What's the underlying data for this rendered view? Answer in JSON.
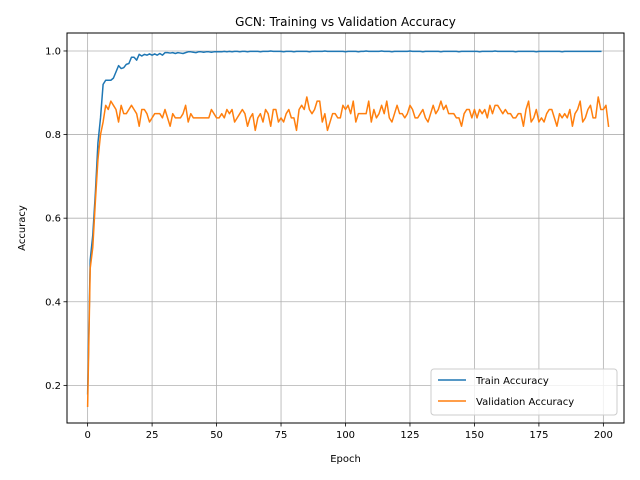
{
  "chart_data": {
    "type": "line",
    "title": "GCN: Training vs Validation Accuracy",
    "xlabel": "Epoch",
    "ylabel": "Accuracy",
    "xlim": [
      -8,
      208
    ],
    "ylim": [
      0.11,
      1.043
    ],
    "xticks": [
      0,
      25,
      50,
      75,
      100,
      125,
      150,
      175,
      200
    ],
    "yticks": [
      0.2,
      0.4,
      0.6,
      0.8,
      1.0
    ],
    "ytick_labels": [
      "0.2",
      "0.4",
      "0.6",
      "0.8",
      "1.0"
    ],
    "grid": true,
    "legend_position": "lower right",
    "series": [
      {
        "name": "Train Accuracy",
        "color": "#1f77b4",
        "values": [
          0.18,
          0.5,
          0.56,
          0.66,
          0.78,
          0.84,
          0.92,
          0.93,
          0.93,
          0.93,
          0.935,
          0.95,
          0.965,
          0.958,
          0.96,
          0.968,
          0.97,
          0.985,
          0.985,
          0.978,
          0.992,
          0.988,
          0.992,
          0.99,
          0.993,
          0.99,
          0.993,
          0.99,
          0.994,
          0.99,
          0.996,
          0.996,
          0.995,
          0.996,
          0.994,
          0.996,
          0.995,
          0.994,
          0.996,
          0.998,
          0.998,
          0.997,
          0.996,
          0.998,
          0.998,
          0.997,
          0.998,
          0.998,
          0.997,
          0.998,
          0.998,
          0.998,
          0.998,
          0.999,
          0.998,
          0.999,
          0.998,
          0.999,
          0.999,
          0.998,
          0.999,
          0.999,
          0.998,
          0.999,
          0.999,
          0.999,
          0.999,
          0.998,
          0.999,
          0.999,
          0.999,
          1.0,
          0.999,
          0.999,
          0.999,
          0.999,
          0.998,
          0.999,
          0.999,
          0.999,
          0.998,
          0.999,
          0.999,
          0.999,
          0.999,
          0.999,
          0.998,
          0.999,
          0.999,
          0.999,
          0.999,
          0.999,
          1.0,
          0.999,
          0.999,
          0.999,
          0.999,
          0.999,
          0.999,
          0.999,
          0.998,
          0.999,
          0.999,
          0.999,
          0.999,
          0.998,
          0.999,
          0.999,
          1.0,
          0.999,
          0.999,
          0.999,
          0.999,
          0.999,
          1.0,
          0.999,
          0.999,
          0.999,
          0.998,
          0.999,
          0.999,
          0.999,
          0.999,
          0.999,
          0.999,
          1.0,
          0.999,
          0.999,
          0.999,
          0.999,
          0.998,
          0.999,
          0.999,
          0.999,
          0.999,
          0.999,
          0.999,
          0.998,
          0.999,
          0.999,
          0.999,
          0.999,
          0.999,
          0.999,
          0.998,
          0.999,
          0.999,
          0.999,
          0.999,
          0.999,
          0.999,
          0.999,
          0.998,
          0.999,
          0.999,
          0.999,
          0.999,
          0.999,
          1.0,
          0.999,
          0.999,
          0.999,
          0.999,
          0.999,
          0.999,
          0.999,
          0.998,
          0.999,
          0.999,
          0.999,
          0.999,
          0.999,
          0.999,
          0.999,
          0.998,
          0.999,
          0.999,
          0.999,
          0.999,
          0.999,
          0.999,
          0.999,
          0.999,
          0.999,
          0.998,
          0.999,
          0.999,
          0.999,
          0.999,
          0.999,
          0.999,
          0.999,
          0.999,
          0.999,
          0.999,
          0.999,
          0.999,
          0.999,
          0.999,
          0.999
        ]
      },
      {
        "name": "Validation Accuracy",
        "color": "#ff7f0e",
        "values": [
          0.15,
          0.48,
          0.53,
          0.64,
          0.74,
          0.8,
          0.83,
          0.87,
          0.86,
          0.88,
          0.87,
          0.86,
          0.83,
          0.87,
          0.85,
          0.85,
          0.86,
          0.87,
          0.86,
          0.85,
          0.82,
          0.86,
          0.86,
          0.85,
          0.83,
          0.84,
          0.85,
          0.85,
          0.85,
          0.84,
          0.86,
          0.84,
          0.82,
          0.85,
          0.84,
          0.84,
          0.84,
          0.85,
          0.87,
          0.83,
          0.85,
          0.84,
          0.84,
          0.84,
          0.84,
          0.84,
          0.84,
          0.84,
          0.86,
          0.85,
          0.84,
          0.84,
          0.85,
          0.84,
          0.86,
          0.85,
          0.86,
          0.83,
          0.84,
          0.85,
          0.86,
          0.85,
          0.82,
          0.84,
          0.85,
          0.81,
          0.84,
          0.85,
          0.83,
          0.86,
          0.85,
          0.82,
          0.86,
          0.86,
          0.83,
          0.84,
          0.83,
          0.85,
          0.86,
          0.84,
          0.84,
          0.81,
          0.86,
          0.87,
          0.86,
          0.89,
          0.86,
          0.85,
          0.86,
          0.88,
          0.88,
          0.83,
          0.85,
          0.81,
          0.83,
          0.85,
          0.85,
          0.84,
          0.84,
          0.87,
          0.86,
          0.87,
          0.85,
          0.88,
          0.83,
          0.85,
          0.85,
          0.85,
          0.85,
          0.88,
          0.83,
          0.86,
          0.84,
          0.85,
          0.87,
          0.85,
          0.88,
          0.84,
          0.83,
          0.85,
          0.87,
          0.85,
          0.85,
          0.84,
          0.85,
          0.87,
          0.86,
          0.84,
          0.84,
          0.85,
          0.86,
          0.84,
          0.83,
          0.85,
          0.87,
          0.85,
          0.86,
          0.88,
          0.86,
          0.87,
          0.85,
          0.85,
          0.85,
          0.84,
          0.84,
          0.82,
          0.85,
          0.86,
          0.86,
          0.84,
          0.86,
          0.84,
          0.86,
          0.85,
          0.86,
          0.84,
          0.87,
          0.85,
          0.87,
          0.87,
          0.86,
          0.85,
          0.86,
          0.85,
          0.85,
          0.84,
          0.84,
          0.85,
          0.85,
          0.82,
          0.86,
          0.88,
          0.83,
          0.84,
          0.86,
          0.83,
          0.84,
          0.83,
          0.85,
          0.86,
          0.86,
          0.84,
          0.82,
          0.85,
          0.84,
          0.85,
          0.84,
          0.86,
          0.82,
          0.85,
          0.86,
          0.88,
          0.83,
          0.84,
          0.86,
          0.87,
          0.84,
          0.84,
          0.89,
          0.86,
          0.86,
          0.87,
          0.82
        ]
      }
    ]
  }
}
